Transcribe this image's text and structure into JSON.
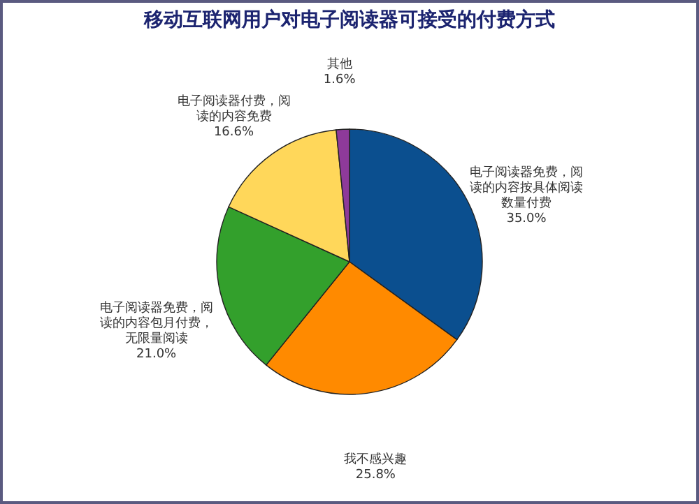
{
  "chart_data": {
    "type": "pie",
    "title": "移动互联网用户对电子阅读器可接受的付费方式",
    "categories": [
      "电子阅读器免费，阅读的内容按具体阅读数量付费",
      "我不感兴趣",
      "电子阅读器免费，阅读的内容包月付费，无限量阅读",
      "电子阅读器付费，阅读的内容免费",
      "其他"
    ],
    "values": [
      35.0,
      25.8,
      21.0,
      16.6,
      1.6
    ],
    "colors": [
      "#0b4f8f",
      "#ff8a00",
      "#33a02c",
      "#ffd75a",
      "#8e3a9a"
    ],
    "value_labels": [
      "35.0%",
      "25.8%",
      "21.0%",
      "16.6%",
      "1.6%"
    ],
    "legend": false
  }
}
